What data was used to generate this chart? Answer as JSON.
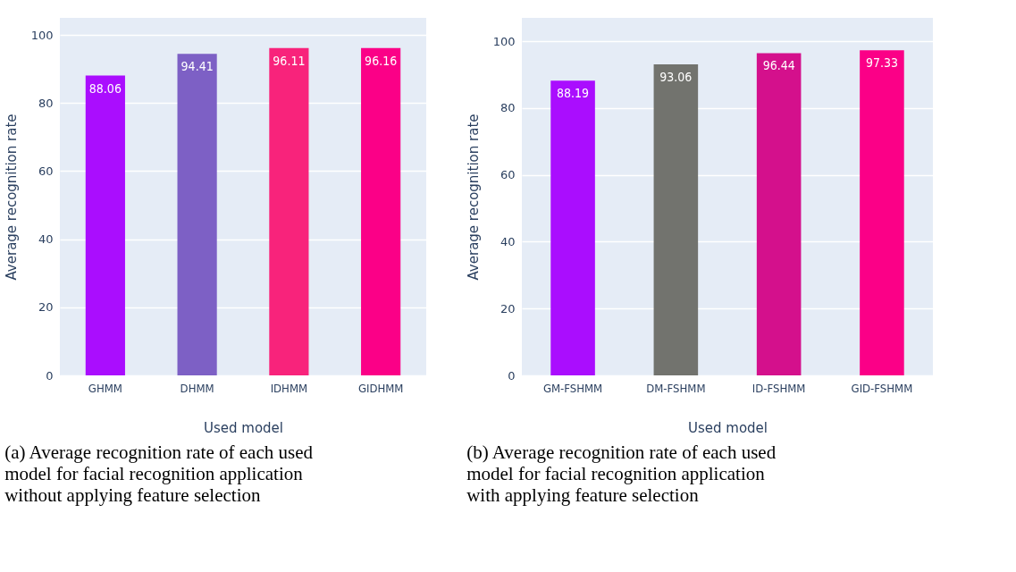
{
  "chart_data": [
    {
      "type": "bar",
      "xlabel": "Used model",
      "ylabel": "Average recognition rate",
      "categories": [
        "GHMM",
        "DHMM",
        "IDHMM",
        "GIDHMM"
      ],
      "values": [
        88.06,
        94.41,
        96.11,
        96.16
      ],
      "colors": [
        "#aa0dfe",
        "#7d60c5",
        "#f8237b",
        "#fb0087"
      ],
      "ylim": [
        0,
        105
      ],
      "yticks": [
        0,
        20,
        40,
        60,
        80,
        100
      ],
      "grid": "y",
      "data_labels": true,
      "annotations": [
        "(a) Average recognition rate of each used model for facial recognition application without applying feature selection"
      ]
    },
    {
      "type": "bar",
      "xlabel": "Used model",
      "ylabel": "Average recognition rate",
      "categories": [
        "GM-FSHMM",
        "DM-FSHMM",
        "ID-FSHMM",
        "GID-FSHMM"
      ],
      "values": [
        88.19,
        93.06,
        96.44,
        97.33
      ],
      "colors": [
        "#aa0dfe",
        "#72736e",
        "#d4108c",
        "#fb0087"
      ],
      "ylim": [
        0,
        107
      ],
      "yticks": [
        0,
        20,
        40,
        60,
        80,
        100
      ],
      "grid": "y",
      "data_labels": true,
      "annotations": [
        "(b) Average recognition rate of each used model for facial recognition application with applying feature selection"
      ]
    }
  ]
}
